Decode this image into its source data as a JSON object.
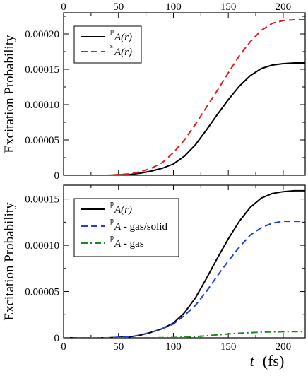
{
  "chart_data": [
    {
      "type": "line",
      "ylabel": "Excitation Probability",
      "xlim": [
        0,
        220
      ],
      "ylim": [
        0,
        0.00023
      ],
      "x_ticks": [
        0,
        50,
        100,
        150,
        200
      ],
      "x_tick_labels": [
        "0",
        "50",
        "100",
        "150",
        "200"
      ],
      "y_ticks": [
        0,
        5e-05,
        0.0001,
        0.00015,
        0.0002
      ],
      "y_tick_labels": [
        "0",
        "0.00005",
        "0.00010",
        "0.00015",
        "0.00020"
      ],
      "grid": false,
      "legend_position": "top-left",
      "series": [
        {
          "label_base": "A(r)",
          "label_sup": "p",
          "color": "#000000",
          "dash": "solid",
          "x": [
            0,
            20,
            40,
            50,
            60,
            70,
            80,
            90,
            100,
            110,
            120,
            130,
            140,
            150,
            160,
            170,
            180,
            190,
            200,
            210,
            220
          ],
          "values": [
            0,
            0,
            0,
            5e-07,
            1e-06,
            3e-06,
            6e-06,
            1e-05,
            1.6e-05,
            2.7e-05,
            4.3e-05,
            6.4e-05,
            8.6e-05,
            0.000107,
            0.000126,
            0.000141,
            0.000151,
            0.000156,
            0.000158,
            0.000159,
            0.000159
          ]
        },
        {
          "label_base": "A(r)",
          "label_sup": "s",
          "color": "#e31a1c",
          "dash": "dashed",
          "x": [
            0,
            20,
            40,
            50,
            60,
            70,
            80,
            90,
            100,
            110,
            120,
            130,
            140,
            150,
            160,
            170,
            180,
            190,
            200,
            210,
            220
          ],
          "values": [
            0,
            0,
            0,
            1e-06,
            2e-06,
            5e-06,
            1e-05,
            1.8e-05,
            3.2e-05,
            5e-05,
            7.2e-05,
            9.6e-05,
            0.00012,
            0.000145,
            0.000169,
            0.000189,
            0.000205,
            0.000215,
            0.000219,
            0.00022,
            0.00022
          ]
        }
      ]
    },
    {
      "type": "line",
      "ylabel": "Excitation Probability",
      "xlabel_symbol": "t",
      "xlabel_unit": "(fs)",
      "xlim": [
        0,
        220
      ],
      "ylim": [
        0,
        0.000165
      ],
      "x_ticks": [
        0,
        50,
        100,
        150,
        200
      ],
      "x_tick_labels": [
        "0",
        "50",
        "100",
        "150",
        "200"
      ],
      "y_ticks": [
        0,
        5e-05,
        0.0001,
        0.00015
      ],
      "y_tick_labels": [
        "0",
        "0.00005",
        "0.00010",
        "0.00015"
      ],
      "grid": false,
      "legend_position": "top-left",
      "series": [
        {
          "label_base": "A(r)",
          "label_sup": "p",
          "color": "#000000",
          "dash": "solid",
          "x": [
            0,
            20,
            40,
            50,
            60,
            70,
            80,
            90,
            100,
            110,
            120,
            130,
            140,
            150,
            160,
            170,
            180,
            190,
            200,
            210,
            220
          ],
          "values": [
            0,
            0,
            0,
            5e-07,
            1e-06,
            3e-06,
            6e-06,
            1e-05,
            1.6e-05,
            2.7e-05,
            4.3e-05,
            6.4e-05,
            8.6e-05,
            0.000107,
            0.000126,
            0.000141,
            0.000151,
            0.000156,
            0.000158,
            0.000159,
            0.000159
          ]
        },
        {
          "label_base": "A - gas/solid",
          "label_sup": "p",
          "color": "#1f3fe0",
          "dash": "dashed",
          "x": [
            0,
            20,
            40,
            50,
            60,
            70,
            80,
            90,
            100,
            110,
            120,
            130,
            140,
            150,
            160,
            170,
            180,
            190,
            200,
            210,
            220
          ],
          "values": [
            0,
            0,
            0,
            5e-07,
            1e-06,
            3e-06,
            6e-06,
            1e-05,
            1.5e-05,
            2.4e-05,
            3.5e-05,
            5e-05,
            6.7e-05,
            8.3e-05,
            9.8e-05,
            0.000111,
            0.000119,
            0.000124,
            0.000126,
            0.000126,
            0.000126
          ]
        },
        {
          "label_base": "A - gas",
          "label_sup": "p",
          "color": "#1a8a1a",
          "dash": "dashdot",
          "x": [
            0,
            20,
            40,
            60,
            80,
            100,
            110,
            120,
            130,
            140,
            150,
            160,
            170,
            180,
            190,
            200,
            210,
            220
          ],
          "values": [
            0,
            0,
            0,
            0,
            0,
            3e-07,
            7e-07,
            1.3e-06,
            2.2e-06,
            3.2e-06,
            4.2e-06,
            5e-06,
            5.6e-06,
            6.1e-06,
            6.4e-06,
            6.6e-06,
            6.7e-06,
            6.7e-06
          ]
        }
      ]
    }
  ]
}
